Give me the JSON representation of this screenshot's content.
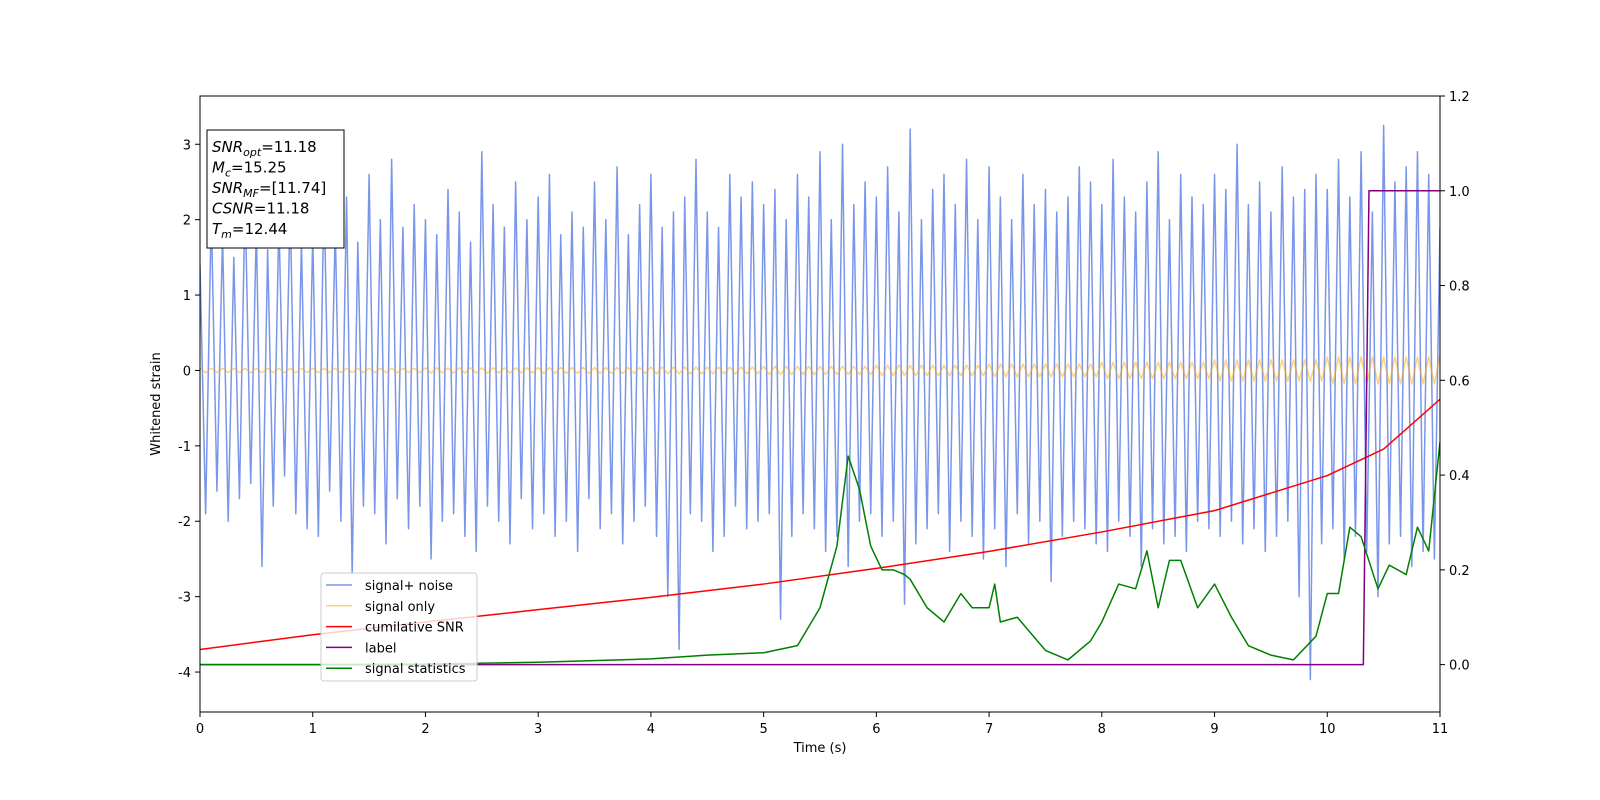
{
  "chart_data": {
    "type": "line",
    "xlabel": "Time (s)",
    "ylabel": "Whitened strain",
    "xlim": [
      0,
      11
    ],
    "xticks": [
      0,
      1,
      2,
      3,
      4,
      5,
      6,
      7,
      8,
      9,
      10,
      11
    ],
    "ylim": [
      -4.53,
      3.64
    ],
    "yticks": [
      -4,
      -3,
      -2,
      -1,
      0,
      1,
      2,
      3
    ],
    "y2lim": [
      -0.1,
      1.2
    ],
    "y2ticks": [
      {
        "value": 0,
        "label": "0.0"
      },
      0.2,
      0.4,
      0.6,
      0.8,
      {
        "value": 1,
        "label": "1.0"
      },
      1.2
    ],
    "legend": "lower left",
    "annotations": [
      {
        "var": "SNR",
        "sub": "opt",
        "text": "=11.18"
      },
      {
        "var": "M",
        "sub": "c",
        "text": "=15.25"
      },
      {
        "var": "SNR",
        "sub": "MF",
        "text": "=[11.74]"
      },
      {
        "var": "CSNR",
        "text": "=11.18"
      },
      {
        "var": "T",
        "sub": "m",
        "text": "=12.44"
      }
    ],
    "x": [
      0,
      0.05,
      0.1,
      0.15,
      0.2,
      0.25,
      0.3,
      0.35,
      0.4,
      0.45,
      0.5,
      0.55,
      0.6,
      0.65,
      0.7,
      0.75,
      0.8,
      0.85,
      0.9,
      0.95,
      1,
      1.05,
      1.1,
      1.15,
      1.2,
      1.25,
      1.3,
      1.35,
      1.4,
      1.45,
      1.5,
      1.55,
      1.6,
      1.65,
      1.7,
      1.75,
      1.8,
      1.85,
      1.9,
      1.95,
      2,
      2.05,
      2.1,
      2.15,
      2.2,
      2.25,
      2.3,
      2.35,
      2.4,
      2.45,
      2.5,
      2.55,
      2.6,
      2.65,
      2.7,
      2.75,
      2.8,
      2.85,
      2.9,
      2.95,
      3,
      3.05,
      3.1,
      3.15,
      3.2,
      3.25,
      3.3,
      3.35,
      3.4,
      3.45,
      3.5,
      3.55,
      3.6,
      3.65,
      3.7,
      3.75,
      3.8,
      3.85,
      3.9,
      3.95,
      4,
      4.05,
      4.1,
      4.15,
      4.2,
      4.25,
      4.3,
      4.35,
      4.4,
      4.45,
      4.5,
      4.55,
      4.6,
      4.65,
      4.7,
      4.75,
      4.8,
      4.85,
      4.9,
      4.95,
      5,
      5.05,
      5.1,
      5.15,
      5.2,
      5.25,
      5.3,
      5.35,
      5.4,
      5.45,
      5.5,
      5.55,
      5.6,
      5.65,
      5.7,
      5.75,
      5.8,
      5.85,
      5.9,
      5.95,
      6,
      6.05,
      6.1,
      6.15,
      6.2,
      6.25,
      6.3,
      6.35,
      6.4,
      6.45,
      6.5,
      6.55,
      6.6,
      6.65,
      6.7,
      6.75,
      6.8,
      6.85,
      6.9,
      6.95,
      7,
      7.05,
      7.1,
      7.15,
      7.2,
      7.25,
      7.3,
      7.35,
      7.4,
      7.45,
      7.5,
      7.55,
      7.6,
      7.65,
      7.7,
      7.75,
      7.8,
      7.85,
      7.9,
      7.95,
      8,
      8.05,
      8.1,
      8.15,
      8.2,
      8.25,
      8.3,
      8.35,
      8.4,
      8.45,
      8.5,
      8.55,
      8.6,
      8.65,
      8.7,
      8.75,
      8.8,
      8.85,
      8.9,
      8.95,
      9,
      9.05,
      9.1,
      9.15,
      9.2,
      9.25,
      9.3,
      9.35,
      9.4,
      9.45,
      9.5,
      9.55,
      9.6,
      9.65,
      9.7,
      9.75,
      9.8,
      9.85,
      9.9,
      9.95,
      10,
      10.05,
      10.1,
      10.15,
      10.2,
      10.25,
      10.3,
      10.35,
      10.4,
      10.45,
      10.5,
      10.55,
      10.6,
      10.65,
      10.7,
      10.75,
      10.8,
      10.85,
      10.9,
      10.95,
      11
    ],
    "series": [
      {
        "name": "signal+ noise",
        "color": "#4169e1",
        "alpha": 0.7,
        "values": [
          1.4,
          -1.9,
          2.1,
          -1.6,
          1.8,
          -2.0,
          1.5,
          -1.7,
          2.3,
          -1.5,
          1.9,
          -2.6,
          1.6,
          -1.8,
          2.0,
          -1.4,
          2.2,
          -1.9,
          1.7,
          -2.1,
          1.8,
          -2.2,
          2.4,
          -1.6,
          1.9,
          -2.0,
          2.3,
          -2.7,
          1.7,
          -1.8,
          2.6,
          -1.9,
          2.0,
          -2.3,
          2.8,
          -1.7,
          1.9,
          -2.1,
          2.2,
          -1.8,
          2.0,
          -2.5,
          1.8,
          -2.0,
          2.4,
          -1.9,
          2.1,
          -2.2,
          1.7,
          -2.4,
          2.9,
          -1.8,
          2.2,
          -2.0,
          1.9,
          -2.3,
          2.5,
          -1.7,
          2.0,
          -2.1,
          2.3,
          -1.9,
          2.6,
          -2.2,
          1.8,
          -2.0,
          2.1,
          -2.4,
          1.9,
          -1.7,
          2.5,
          -2.1,
          2.0,
          -1.9,
          2.7,
          -2.3,
          1.8,
          -2.0,
          2.2,
          -1.8,
          2.6,
          -2.2,
          1.9,
          -3.0,
          2.1,
          -3.7,
          2.3,
          -1.9,
          2.8,
          -2.0,
          2.1,
          -2.4,
          1.9,
          -2.2,
          2.6,
          -1.8,
          2.3,
          -2.1,
          2.5,
          -2.0,
          2.2,
          -1.9,
          2.4,
          -3.3,
          2.0,
          -2.2,
          2.6,
          -1.9,
          2.3,
          -2.1,
          2.9,
          -2.4,
          2.0,
          -2.2,
          3.0,
          -2.6,
          2.2,
          -2.0,
          2.5,
          -1.9,
          2.3,
          -2.2,
          2.7,
          -2.0,
          2.1,
          -3.1,
          3.2,
          -2.3,
          2.0,
          -2.1,
          2.4,
          -1.9,
          2.6,
          -2.4,
          2.2,
          -2.0,
          2.8,
          -2.2,
          2.0,
          -2.5,
          2.7,
          -2.1,
          2.3,
          -2.6,
          2.0,
          -1.9,
          2.6,
          -2.3,
          2.2,
          -2.0,
          2.4,
          -2.8,
          2.1,
          -2.2,
          2.3,
          -2.0,
          2.7,
          -2.1,
          2.5,
          -2.3,
          2.2,
          -2.4,
          2.8,
          -2.0,
          2.3,
          -2.2,
          2.1,
          -2.6,
          2.5,
          -2.1,
          2.9,
          -2.3,
          2.0,
          -2.2,
          2.6,
          -2.4,
          2.3,
          -2.0,
          2.2,
          -2.1,
          2.6,
          -2.2,
          2.4,
          -2.0,
          3.0,
          -2.3,
          2.2,
          -2.1,
          2.5,
          -2.4,
          2.1,
          -2.2,
          2.7,
          -2.0,
          2.3,
          -3.0,
          2.4,
          -4.1,
          2.6,
          -2.3,
          2.4,
          -2.1,
          2.8,
          -2.5,
          2.3,
          -2.2,
          2.9,
          -2.4,
          2.1,
          -3.0,
          3.25,
          -2.3,
          2.5,
          -2.2,
          2.7,
          -2.6,
          2.9,
          -2.4,
          2.6,
          -2.5,
          1.9
        ]
      },
      {
        "name": "signal only",
        "color": "#ffa500",
        "alpha": 0.5,
        "values": [
          0.03,
          -0.03,
          0.03,
          -0.03,
          0.03,
          -0.03,
          0.03,
          -0.03,
          0.03,
          -0.03,
          0.03,
          -0.03,
          0.03,
          -0.03,
          0.03,
          -0.03,
          0.03,
          -0.03,
          0.03,
          -0.03,
          0.03,
          -0.03,
          0.03,
          -0.03,
          0.03,
          -0.03,
          0.03,
          -0.03,
          0.03,
          -0.03,
          0.03,
          -0.03,
          0.03,
          -0.03,
          0.03,
          -0.03,
          0.03,
          -0.03,
          0.03,
          -0.03,
          0.035,
          -0.035,
          0.035,
          -0.035,
          0.035,
          -0.035,
          0.035,
          -0.035,
          0.035,
          -0.035,
          0.035,
          -0.035,
          0.035,
          -0.035,
          0.035,
          -0.035,
          0.035,
          -0.035,
          0.035,
          -0.035,
          0.04,
          -0.04,
          0.04,
          -0.04,
          0.04,
          -0.04,
          0.04,
          -0.04,
          0.04,
          -0.04,
          0.04,
          -0.04,
          0.04,
          -0.04,
          0.04,
          -0.04,
          0.04,
          -0.04,
          0.04,
          -0.04,
          0.045,
          -0.045,
          0.045,
          -0.045,
          0.045,
          -0.045,
          0.045,
          -0.045,
          0.045,
          -0.045,
          0.045,
          -0.045,
          0.045,
          -0.045,
          0.045,
          -0.045,
          0.045,
          -0.045,
          0.045,
          -0.045,
          0.055,
          -0.055,
          0.055,
          -0.055,
          0.055,
          -0.055,
          0.055,
          -0.055,
          0.055,
          -0.055,
          0.055,
          -0.055,
          0.055,
          -0.055,
          0.055,
          -0.055,
          0.055,
          -0.055,
          0.055,
          -0.055,
          0.07,
          -0.07,
          0.07,
          -0.07,
          0.07,
          -0.07,
          0.07,
          -0.07,
          0.07,
          -0.07,
          0.07,
          -0.07,
          0.07,
          -0.07,
          0.07,
          -0.07,
          0.07,
          -0.07,
          0.07,
          -0.07,
          0.085,
          -0.085,
          0.085,
          -0.085,
          0.085,
          -0.085,
          0.085,
          -0.085,
          0.085,
          -0.085,
          0.085,
          -0.085,
          0.085,
          -0.085,
          0.085,
          -0.085,
          0.085,
          -0.085,
          0.085,
          -0.085,
          0.11,
          -0.11,
          0.11,
          -0.11,
          0.11,
          -0.11,
          0.11,
          -0.11,
          0.11,
          -0.11,
          0.11,
          -0.11,
          0.11,
          -0.11,
          0.11,
          -0.11,
          0.11,
          -0.11,
          0.11,
          -0.11,
          0.14,
          -0.14,
          0.14,
          -0.14,
          0.14,
          -0.14,
          0.14,
          -0.14,
          0.14,
          -0.14,
          0.14,
          -0.14,
          0.14,
          -0.14,
          0.14,
          -0.14,
          0.14,
          -0.14,
          0.14,
          -0.14,
          0.18,
          -0.18,
          0.18,
          -0.18,
          0.18,
          -0.18,
          0.18,
          -0.18,
          0.18,
          -0.18,
          0.18,
          -0.18,
          0.18,
          -0.18,
          0.18,
          -0.18,
          0.18,
          -0.18,
          0.18,
          -0.18,
          0.2
        ]
      },
      {
        "name": "cumilative SNR",
        "color": "#ff0000",
        "axis": "y2",
        "x": [
          0,
          1,
          2,
          3,
          4,
          5,
          6,
          7,
          8,
          9,
          10,
          10.5,
          11
        ],
        "values": [
          0.032,
          0.063,
          0.09,
          0.116,
          0.142,
          0.17,
          0.203,
          0.239,
          0.28,
          0.325,
          0.399,
          0.455,
          0.56
        ]
      },
      {
        "name": "label",
        "color": "#800080",
        "axis": "y2",
        "x": [
          0,
          10.32,
          10.37,
          11
        ],
        "values": [
          0,
          0,
          1,
          1
        ]
      },
      {
        "name": "signal statistics",
        "color": "#008000",
        "axis": "y2",
        "x": [
          0,
          1,
          2,
          3,
          4,
          4.5,
          5,
          5.3,
          5.5,
          5.65,
          5.75,
          5.85,
          5.95,
          6.05,
          6.15,
          6.25,
          6.3,
          6.45,
          6.6,
          6.75,
          6.85,
          7.0,
          7.05,
          7.1,
          7.25,
          7.5,
          7.7,
          7.9,
          8.0,
          8.15,
          8.3,
          8.4,
          8.5,
          8.6,
          8.7,
          8.85,
          9.0,
          9.15,
          9.3,
          9.5,
          9.7,
          9.9,
          10.0,
          10.1,
          10.2,
          10.3,
          10.45,
          10.55,
          10.7,
          10.8,
          10.9,
          11
        ],
        "values": [
          0,
          0,
          0.001,
          0.005,
          0.012,
          0.02,
          0.025,
          0.04,
          0.12,
          0.25,
          0.44,
          0.37,
          0.25,
          0.2,
          0.2,
          0.19,
          0.18,
          0.12,
          0.09,
          0.15,
          0.12,
          0.12,
          0.17,
          0.09,
          0.1,
          0.03,
          0.01,
          0.05,
          0.09,
          0.17,
          0.16,
          0.24,
          0.12,
          0.22,
          0.22,
          0.12,
          0.17,
          0.1,
          0.04,
          0.02,
          0.01,
          0.06,
          0.15,
          0.15,
          0.29,
          0.27,
          0.16,
          0.21,
          0.19,
          0.29,
          0.24,
          0.47
        ]
      }
    ]
  }
}
